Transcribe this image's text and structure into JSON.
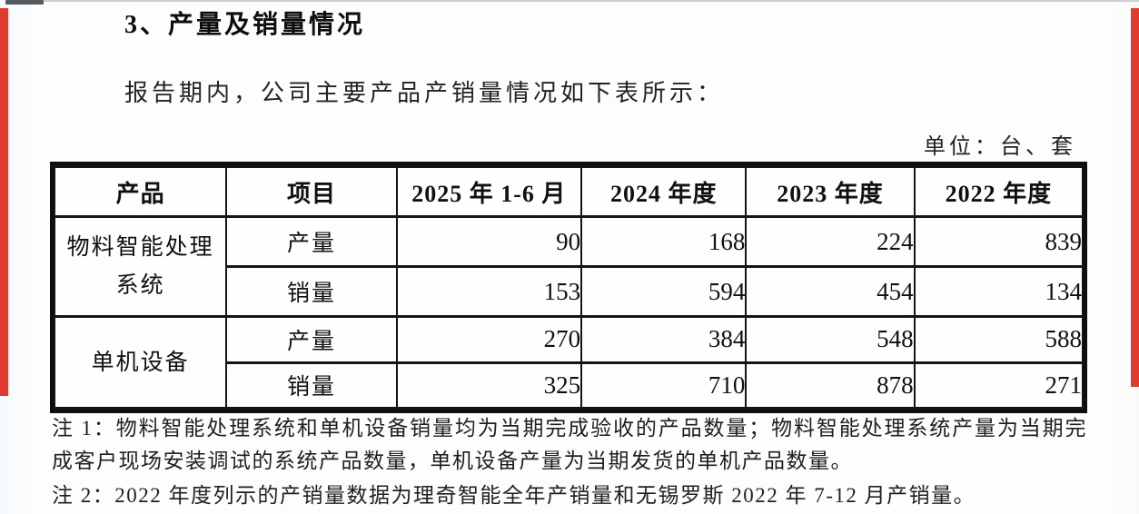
{
  "page": {
    "section_title": "3、产量及销量情况",
    "intro": "报告期内，公司主要产品产销量情况如下表所示：",
    "unit_label": "单位：台、套"
  },
  "table": {
    "headers": [
      "产品",
      "项目",
      "2025 年 1-6 月",
      "2024 年度",
      "2023 年度",
      "2022 年度"
    ],
    "groups": [
      {
        "product": "物料智能处理系统",
        "rows": [
          {
            "item": "产量",
            "values": [
              "90",
              "168",
              "224",
              "839"
            ]
          },
          {
            "item": "销量",
            "values": [
              "153",
              "594",
              "454",
              "134"
            ]
          }
        ]
      },
      {
        "product": "单机设备",
        "rows": [
          {
            "item": "产量",
            "values": [
              "270",
              "384",
              "548",
              "588"
            ]
          },
          {
            "item": "销量",
            "values": [
              "325",
              "710",
              "878",
              "271"
            ]
          }
        ]
      }
    ]
  },
  "notes": [
    "注 1：物料智能处理系统和单机设备销量均为当期完成验收的产品数量；物料智能处理系统产量为当期完成客户现场安装调试的系统产品数量，单机设备产量为当期发货的单机产品数量。",
    "注 2：2022 年度列示的产销量数据为理奇智能全年产销量和无锡罗斯 2022 年 7-12 月产销量。"
  ],
  "decor": {
    "edge_bar_color": "#e13a2e",
    "border_color": "#0e0e0e"
  }
}
